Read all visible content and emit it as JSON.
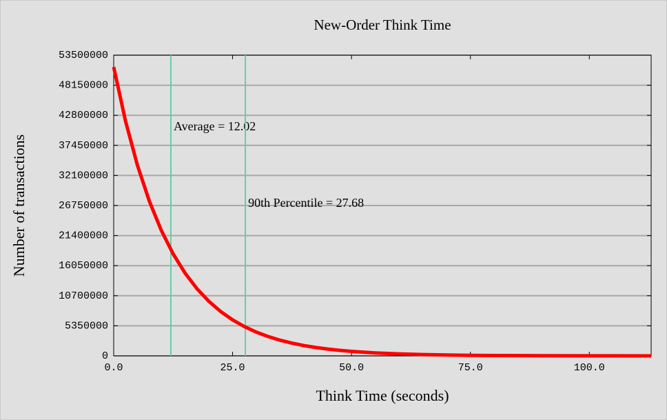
{
  "chart_data": {
    "type": "line",
    "title": "New-Order Think Time",
    "x_label": "Think Time (seconds)",
    "y_label": "Number of transactions",
    "xlim": [
      0,
      113
    ],
    "ylim": [
      0,
      53500000
    ],
    "xticks": [
      {
        "value": 0,
        "label": "0.0"
      },
      {
        "value": 25,
        "label": "25.0"
      },
      {
        "value": 50,
        "label": "50.0"
      },
      {
        "value": 75,
        "label": "75.0"
      },
      {
        "value": 100,
        "label": "100.0"
      }
    ],
    "yticks": [
      0,
      5350000,
      10700000,
      16050000,
      21400000,
      26750000,
      32100000,
      37450000,
      42800000,
      48150000,
      53500000
    ],
    "grid": true,
    "x": [
      0,
      2.5,
      5,
      7.5,
      10,
      12.5,
      15,
      17.5,
      20,
      22.5,
      25,
      27.5,
      30,
      32.5,
      35,
      37.5,
      40,
      42.5,
      45,
      47.5,
      50,
      55,
      60,
      65,
      70,
      75,
      80,
      90,
      100,
      113
    ],
    "series": [
      {
        "name": "Number of transactions",
        "color": "#ff0000",
        "values": [
          51400000,
          41730000,
          33880000,
          27510000,
          22340000,
          18140000,
          14730000,
          11960000,
          9710000,
          7880000,
          6400000,
          5200000,
          4220000,
          3430000,
          2780000,
          2260000,
          1830000,
          1490000,
          1210000,
          982000,
          797000,
          525000,
          346000,
          228000,
          150000,
          99000,
          65000,
          28000,
          12000,
          4000
        ]
      }
    ],
    "vlines": [
      {
        "x": 12.02,
        "label": "Average = 12.02",
        "color": "#66ccaa"
      },
      {
        "x": 27.68,
        "label": "90th Percentile = 27.68",
        "color": "#66ccaa"
      }
    ]
  }
}
